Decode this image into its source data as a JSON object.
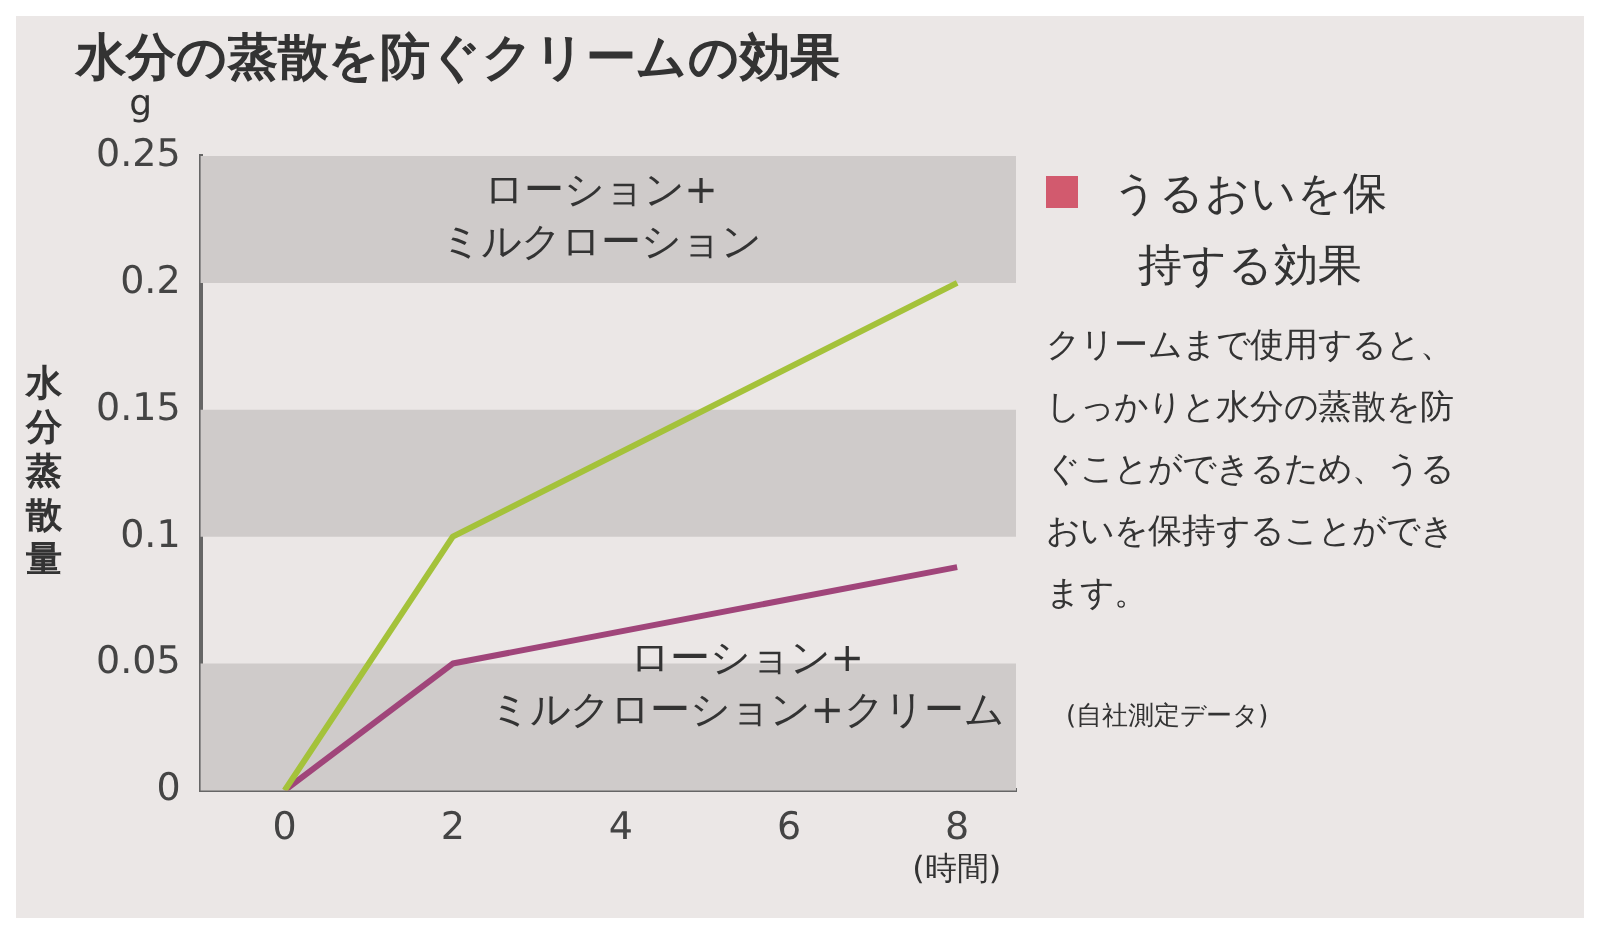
{
  "chart_data": {
    "type": "line",
    "title": "水分の蒸散を防ぐクリームの効果",
    "xlabel": "(時間)",
    "ylabel": "水分蒸散量",
    "x": [
      0,
      2,
      8
    ],
    "series": [
      {
        "name": "ローション+ミルクローション",
        "color": "#a4c23a",
        "values": [
          0,
          0.1,
          0.2
        ]
      },
      {
        "name": "ローション+ミルクローション+クリーム",
        "color": "#a0457a",
        "values": [
          0,
          0.05,
          0.088
        ]
      }
    ],
    "xlim": [
      -1,
      8.7
    ],
    "xticks": [
      0,
      2,
      4,
      6,
      8
    ],
    "ylim": [
      0,
      0.25
    ],
    "yticks": [
      0,
      0.05,
      0.1,
      0.15,
      0.2,
      0.25
    ],
    "bands": [
      {
        "axis": "y",
        "from": 0,
        "to": 0.05,
        "color": "#cfcbca"
      },
      {
        "axis": "y",
        "from": 0.1,
        "to": 0.15,
        "color": "#cfcbca"
      },
      {
        "axis": "y",
        "from": 0.2,
        "to": 0.25,
        "color": "#cfcbca"
      }
    ],
    "grid": false,
    "legend": false,
    "marker": "none",
    "line_style": "solid",
    "annotations": [
      "g",
      "うるおいを保持する効果",
      "クリームまで使用すると、しっかりと水分の蒸散を防ぐことができるため、うるおいを保持することができます。",
      "(自社測定データ)"
    ]
  }
}
